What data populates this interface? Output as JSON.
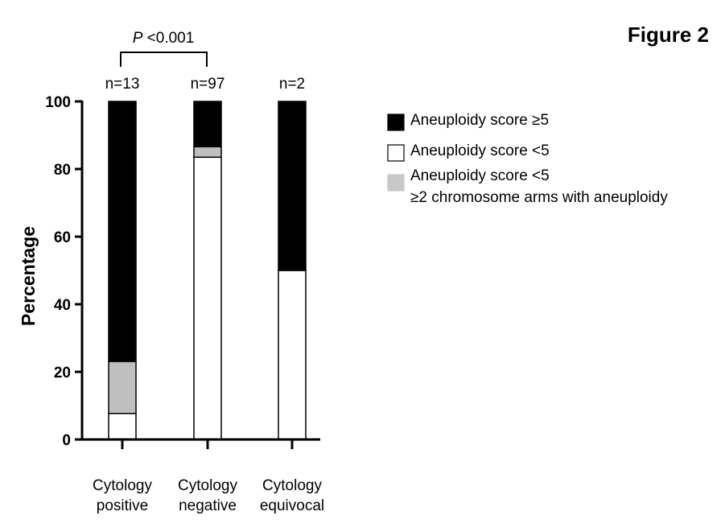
{
  "figure_label": "Figure 2",
  "significance": {
    "prefix": "P",
    "text": " <0.001"
  },
  "chart_data": {
    "type": "bar",
    "stacked": true,
    "ylabel": "Percentage",
    "xlabel": "",
    "ylim": [
      0,
      100
    ],
    "yticks": [
      0,
      20,
      40,
      60,
      80,
      100
    ],
    "categories": [
      {
        "line1": "Cytology",
        "line2": "positive",
        "n": "n=13"
      },
      {
        "line1": "Cytology",
        "line2": "negative",
        "n": "n=97"
      },
      {
        "line1": "Cytology",
        "line2": "equivocal",
        "n": "n=2"
      }
    ],
    "series": [
      {
        "name": "Aneuploidy score <5",
        "color": "#ffffff",
        "values": [
          7.7,
          83.5,
          50.0
        ]
      },
      {
        "name": "Aneuploidy score <5 ≥2 chromosome arms with aneuploidy",
        "color": "#bfbfbf",
        "values": [
          15.4,
          3.1,
          0
        ]
      },
      {
        "name": "Aneuploidy score ≥5",
        "color": "#000000",
        "values": [
          76.9,
          13.4,
          50.0
        ]
      }
    ],
    "legend": [
      {
        "color": "#000000",
        "line1": "Aneuploidy score ≥5",
        "line2": ""
      },
      {
        "color": "#ffffff",
        "line1": "Aneuploidy score <5",
        "line2": ""
      },
      {
        "color": "#c8c8c8",
        "line1": "Aneuploidy score <5",
        "line2": "≥2 chromosome arms with aneuploidy"
      }
    ],
    "legend_position": "right"
  }
}
